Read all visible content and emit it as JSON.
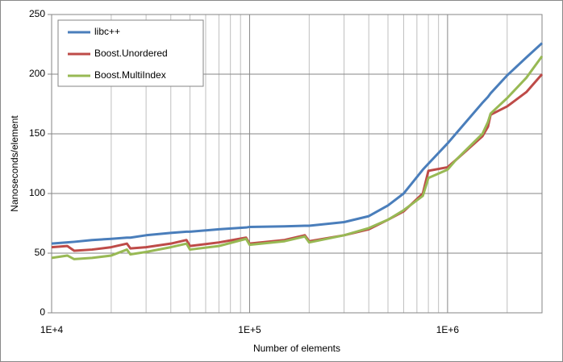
{
  "chart_data": {
    "type": "line",
    "x_label": "Number of elements",
    "y_label": "Nanoseconds/element",
    "x_scale": "log",
    "xlim": [
      10000,
      3000000
    ],
    "xticks": [
      {
        "value": 10000,
        "label": "1E+4"
      },
      {
        "value": 100000,
        "label": "1E+5"
      },
      {
        "value": 1000000,
        "label": "1E+6"
      }
    ],
    "x_minor_gridlines": [
      20000,
      30000,
      40000,
      50000,
      60000,
      70000,
      80000,
      90000,
      200000,
      300000,
      400000,
      500000,
      600000,
      700000,
      800000,
      900000,
      2000000,
      3000000
    ],
    "ylim": [
      0,
      250
    ],
    "yticks": [
      0,
      50,
      100,
      150,
      200,
      250
    ],
    "grid": true,
    "legend": "upper left",
    "x": [
      10000,
      12000,
      13000,
      16000,
      20000,
      24000,
      25000,
      30000,
      40000,
      48000,
      50000,
      70000,
      96000,
      100000,
      150000,
      190000,
      200000,
      300000,
      400000,
      500000,
      600000,
      750000,
      800000,
      1000000,
      1100000,
      1500000,
      1600000,
      1650000,
      2000000,
      2500000,
      3000000
    ],
    "series": [
      {
        "name": "libc++",
        "color": "#4a7ebb",
        "values": [
          58,
          59,
          59.5,
          61,
          62,
          63,
          63,
          65,
          67,
          68,
          68,
          70,
          71.5,
          72,
          72.5,
          73,
          73,
          76,
          81,
          90,
          100,
          120,
          125,
          142,
          150,
          176,
          181,
          184,
          199,
          214,
          226
        ]
      },
      {
        "name": "Boost.Unordered",
        "color": "#be4b48",
        "values": [
          55,
          56,
          52,
          53,
          55,
          58,
          54,
          55,
          58,
          61,
          56,
          59,
          63,
          58,
          61,
          65,
          60,
          65,
          70,
          78,
          85,
          100,
          119,
          122,
          128,
          148,
          156,
          166,
          173,
          185,
          200
        ]
      },
      {
        "name": "Boost.MultiIndex",
        "color": "#98b954",
        "values": [
          46,
          48,
          45,
          46,
          48,
          53,
          49,
          51,
          55,
          58,
          53,
          56,
          62,
          57,
          60,
          64,
          59,
          65,
          71,
          78,
          86,
          98,
          113,
          120,
          128,
          150,
          160,
          167,
          180,
          197,
          215
        ]
      }
    ]
  }
}
